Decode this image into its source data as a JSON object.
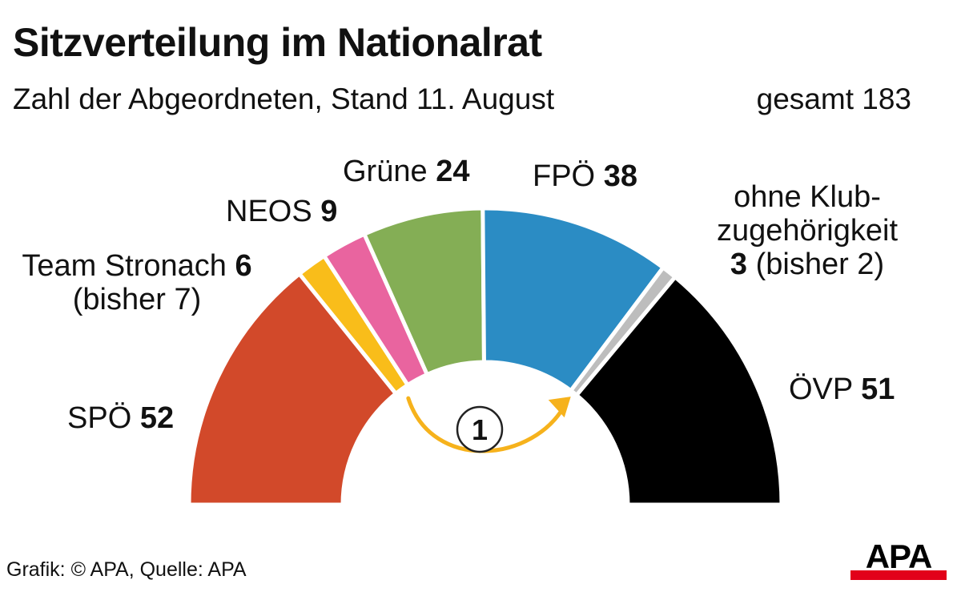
{
  "header": {
    "title": "Sitzverteilung im Nationalrat",
    "subtitle": "Zahl der Abgeordneten, Stand 11. August",
    "total": "gesamt 183"
  },
  "chart_data": {
    "type": "pie",
    "variant": "half-donut (parliament seats)",
    "title": "Sitzverteilung im Nationalrat",
    "subtitle": "Zahl der Abgeordneten, Stand 11. August",
    "total": 183,
    "order": "left to right",
    "series": [
      {
        "name": "SPÖ",
        "value": 52,
        "color": "#d2492a"
      },
      {
        "name": "Team Stronach",
        "value": 6,
        "previous": 7,
        "color": "#f9bd1a"
      },
      {
        "name": "NEOS",
        "value": 9,
        "color": "#e9649f"
      },
      {
        "name": "Grüne",
        "value": 24,
        "color": "#84ae55"
      },
      {
        "name": "FPÖ",
        "value": 38,
        "color": "#2b8cc4"
      },
      {
        "name": "ohne Klubzugehörigkeit",
        "value": 3,
        "previous": 2,
        "color": "#bdbdbd"
      },
      {
        "name": "ÖVP",
        "value": 51,
        "color": "#000000"
      }
    ],
    "annotation": {
      "from": "Team Stronach",
      "to": "ohne Klubzugehörigkeit",
      "value": "1",
      "color": "#f6b21c"
    }
  },
  "labels": {
    "spo": {
      "name": "SPÖ",
      "value": "52"
    },
    "ts": {
      "name": "Team Stronach",
      "value": "6",
      "note": "(bisher 7)"
    },
    "neos": {
      "name": "NEOS",
      "value": "9"
    },
    "grune": {
      "name": "Grüne",
      "value": "24"
    },
    "fpo": {
      "name": "FPÖ",
      "value": "38"
    },
    "okz": {
      "line1": "ohne Klub-",
      "line2": "zugehörigkeit",
      "value": "3",
      "note": "(bisher 2)"
    },
    "ovp": {
      "name": "ÖVP",
      "value": "51"
    }
  },
  "footer": {
    "source": "Grafik: © APA, Quelle: APA"
  },
  "logo": {
    "text": "APA",
    "color_text": "#000000",
    "color_bar": "#e2001a"
  }
}
